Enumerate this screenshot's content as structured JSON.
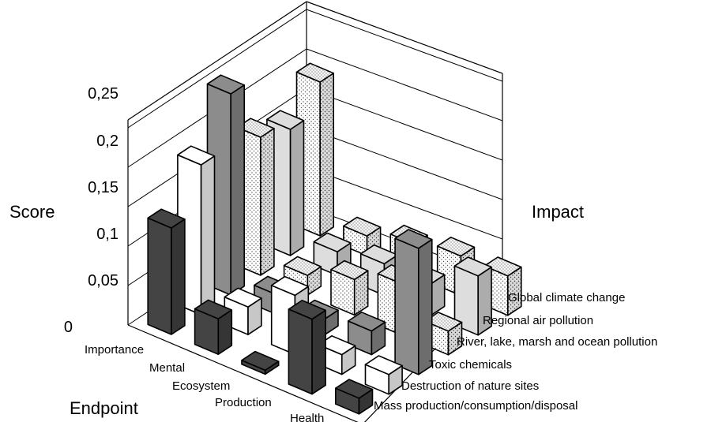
{
  "chart_data": {
    "type": "bar3d",
    "title": "",
    "zlabel": "Score",
    "xlabel": "Endpoint",
    "ylabel": "Impact",
    "zlim": [
      0,
      0.25
    ],
    "z_ticks": [
      "0",
      "0,05",
      "0,1",
      "0,15",
      "0,2",
      "0,25"
    ],
    "z_tick_values": [
      0,
      0.05,
      0.1,
      0.15,
      0.2,
      0.25
    ],
    "grid": true,
    "endpoints": [
      "Importance",
      "Mental",
      "Ecosystem",
      "Production",
      "Health"
    ],
    "impacts": [
      "Mass production/consumption/disposal",
      "Destruction of nature sites",
      "Toxic chemicals",
      "River, lake, marsh and ocean pollution",
      "Regional air pollution",
      "Global climate change"
    ],
    "series": [
      {
        "name": "Mass production/consumption/disposal",
        "color": "#444444",
        "pattern": "solid",
        "values": [
          0.135,
          0.045,
          0.005,
          0.095,
          0.02
        ]
      },
      {
        "name": "Destruction of nature sites",
        "color": "#ffffff",
        "pattern": "solid",
        "values": [
          0.19,
          0.035,
          0.075,
          0.025,
          0.025
        ]
      },
      {
        "name": "Toxic chemicals",
        "color": "#8c8c8c",
        "pattern": "solid",
        "values": [
          0.255,
          0.025,
          0.02,
          0.03,
          0.16
        ]
      },
      {
        "name": "River, lake, marsh and ocean pollution",
        "color": "#eeeeee",
        "pattern": "dotted",
        "values": [
          0.175,
          0.025,
          0.045,
          0.065,
          0.03
        ]
      },
      {
        "name": "Regional air pollution",
        "color": "#dddddd",
        "pattern": "solid",
        "values": [
          0.16,
          0.03,
          0.04,
          0.04,
          0.075
        ]
      },
      {
        "name": "Global climate change",
        "color": "#eeeeee",
        "pattern": "dotted",
        "values": [
          0.195,
          0.025,
          0.04,
          0.05,
          0.05
        ]
      }
    ]
  }
}
